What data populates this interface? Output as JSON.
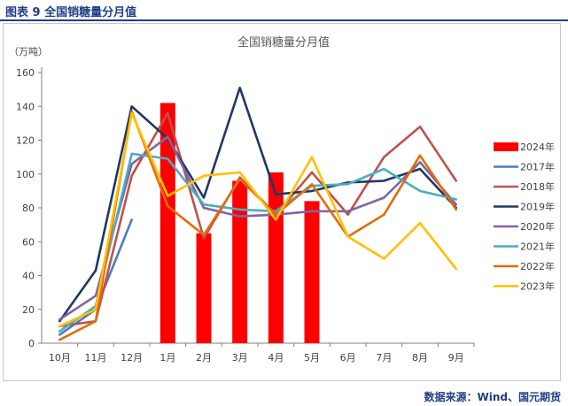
{
  "figure_label": "图表 9 全国销糖量分月值",
  "source_note": "数据来源：Wind、国元期货",
  "colors": {
    "header_blue": "#1f3f86",
    "2024年": "#ff0000",
    "2017年": "#4a7ebb",
    "2018年": "#c0504d",
    "2019年": "#1f3864",
    "2020年": "#8064a2",
    "2021年": "#4bacc6",
    "2022年": "#e36c09",
    "2023年": "#ffc000"
  },
  "chart_data": {
    "type": "bar+line",
    "title": "全国销糖量分月值",
    "ylabel": "（万吨）",
    "ylim": [
      0,
      160
    ],
    "yticks": [
      0,
      20,
      40,
      60,
      80,
      100,
      120,
      140,
      160
    ],
    "grid": false,
    "legend_position": "right",
    "categories": [
      "10月",
      "11月",
      "12月",
      "1月",
      "2月",
      "3月",
      "4月",
      "5月",
      "6月",
      "7月",
      "8月",
      "9月"
    ],
    "bar_series": {
      "name": "2024年",
      "values": [
        null,
        null,
        null,
        142,
        65,
        96,
        101,
        84,
        null,
        null,
        null,
        null
      ]
    },
    "line_series": [
      {
        "name": "2017年",
        "values": [
          5,
          20,
          73,
          null,
          null,
          null,
          null,
          null,
          null,
          null,
          null,
          null
        ]
      },
      {
        "name": "2018年",
        "values": [
          10,
          13,
          99,
          136,
          62,
          98,
          76,
          101,
          76,
          110,
          128,
          96
        ]
      },
      {
        "name": "2019年",
        "values": [
          13,
          43,
          140,
          121,
          86,
          151,
          88,
          90,
          95,
          96,
          103,
          80
        ]
      },
      {
        "name": "2020年",
        "values": [
          14,
          28,
          106,
          122,
          80,
          75,
          76,
          78,
          78,
          86,
          107,
          82
        ]
      },
      {
        "name": "2021年",
        "values": [
          7,
          22,
          112,
          109,
          82,
          79,
          78,
          93,
          94,
          103,
          90,
          85
        ]
      },
      {
        "name": "2022年",
        "values": [
          2,
          13,
          137,
          81,
          64,
          97,
          76,
          94,
          63,
          76,
          111,
          79
        ]
      },
      {
        "name": "2023年",
        "values": [
          10,
          20,
          136,
          87,
          99,
          101,
          73,
          110,
          63,
          50,
          71,
          44
        ]
      }
    ]
  }
}
